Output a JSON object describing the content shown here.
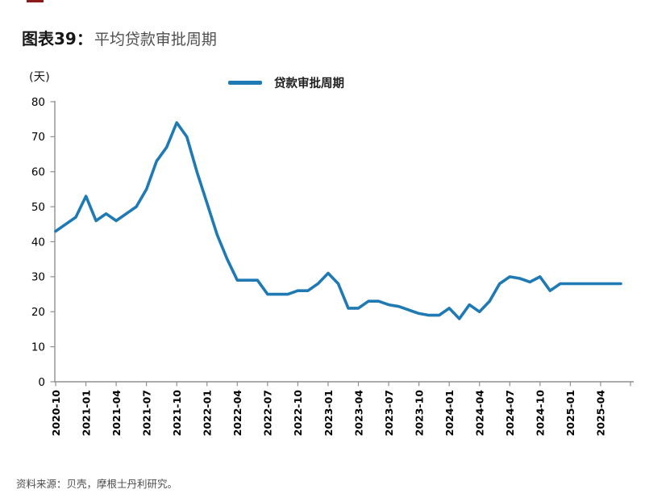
{
  "page": {
    "top_mark_color": "#8B1A1A"
  },
  "header": {
    "label": "图表39：",
    "title": "平均贷款审批周期"
  },
  "chart_data": {
    "type": "line",
    "title": "平均贷款审批周期",
    "unit_label": "(天)",
    "ylabel": "天",
    "ylim": [
      0,
      80
    ],
    "y_ticks": [
      0,
      10,
      20,
      30,
      40,
      50,
      60,
      70,
      80
    ],
    "grid": false,
    "legend_position": "top-center",
    "line_color": "#1f7ab4",
    "x": [
      "2020-10",
      "2020-11",
      "2020-12",
      "2021-01",
      "2021-02",
      "2021-03",
      "2021-04",
      "2021-05",
      "2021-06",
      "2021-07",
      "2021-08",
      "2021-09",
      "2021-10",
      "2021-11",
      "2021-12",
      "2022-01",
      "2022-02",
      "2022-03",
      "2022-04",
      "2022-05",
      "2022-06",
      "2022-07",
      "2022-08",
      "2022-09",
      "2022-10",
      "2022-11",
      "2022-12",
      "2023-01",
      "2023-02",
      "2023-03",
      "2023-04",
      "2023-05",
      "2023-06",
      "2023-07",
      "2023-08",
      "2023-09",
      "2023-10",
      "2023-11",
      "2023-12",
      "2024-01",
      "2024-02",
      "2024-03",
      "2024-04",
      "2024-05",
      "2024-06",
      "2024-07",
      "2024-08",
      "2024-09",
      "2024-10",
      "2024-11",
      "2024-12",
      "2025-01",
      "2025-02",
      "2025-03",
      "2025-04",
      "2025-05",
      "2025-06"
    ],
    "x_tick_labels": [
      "2020-10",
      "2021-01",
      "2021-04",
      "2021-07",
      "2021-10",
      "2022-01",
      "2022-04",
      "2022-07",
      "2022-10",
      "2023-01",
      "2023-04",
      "2023-07",
      "2023-10",
      "2024-01",
      "2024-04",
      "2024-07",
      "2024-10",
      "2025-01",
      "2025-04"
    ],
    "series": [
      {
        "name": "贷款审批周期",
        "color": "#1f7ab4",
        "values": [
          43,
          45,
          47,
          53,
          46,
          48,
          46,
          48,
          50,
          55,
          63,
          67,
          74,
          70,
          60,
          51,
          42,
          35,
          29,
          29,
          29,
          25,
          25,
          25,
          26,
          26,
          28,
          31,
          28,
          21,
          21,
          23,
          23,
          22,
          21.5,
          20.5,
          19.5,
          19,
          19,
          21,
          18,
          22,
          20,
          23,
          28,
          30,
          29.5,
          28.5,
          30,
          26,
          28,
          28,
          28,
          28,
          28,
          28,
          28
        ]
      }
    ]
  },
  "footer": {
    "source": "资料来源：贝壳，摩根士丹利研究。"
  }
}
